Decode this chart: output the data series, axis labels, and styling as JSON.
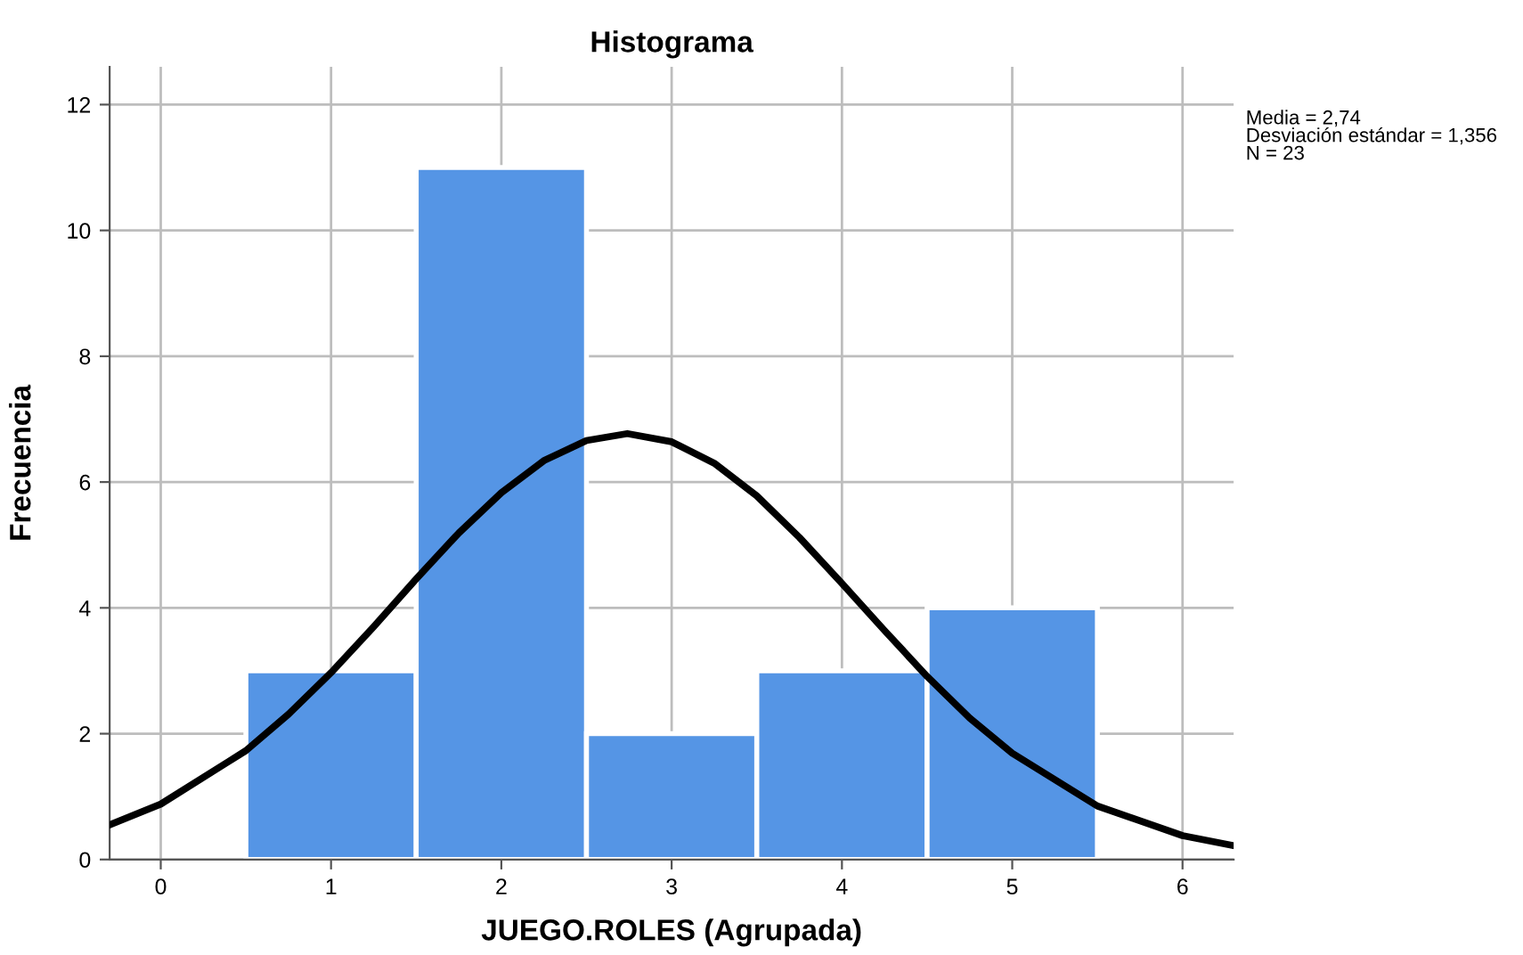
{
  "chart_data": {
    "type": "histogram",
    "title": "Histograma",
    "xlabel": "JUEGO.ROLES (Agrupada)",
    "ylabel": "Frecuencia",
    "bins": [
      0.5,
      1.5,
      2.5,
      3.5,
      4.5,
      5.5
    ],
    "values": [
      3,
      11,
      2,
      3,
      4
    ],
    "color": "#5595e5",
    "series": [
      {
        "type": "line",
        "color": "#000000",
        "x": [
          -0.3,
          0,
          0.5,
          0.75,
          1,
          1.25,
          1.5,
          1.75,
          2,
          2.25,
          2.5,
          2.74,
          3,
          3.25,
          3.5,
          3.75,
          4,
          4.25,
          4.5,
          4.75,
          5,
          5.5,
          6,
          6.3
        ],
        "values": [
          0.55,
          0.88,
          1.73,
          2.31,
          2.97,
          3.7,
          4.46,
          5.19,
          5.83,
          6.34,
          6.66,
          6.77,
          6.64,
          6.3,
          5.78,
          5.12,
          4.39,
          3.64,
          2.91,
          2.25,
          1.69,
          0.85,
          0.38,
          0.22
        ]
      }
    ],
    "xlim": [
      -0.3,
      6.3
    ],
    "xticks": [
      0,
      1,
      2,
      3,
      4,
      5,
      6
    ],
    "ylim": [
      0,
      12.6
    ],
    "yticks": [
      0,
      2,
      4,
      6,
      8,
      10,
      12
    ],
    "grid": true,
    "annotations": [
      "Media = 2,74\nDesviación estándar = 1,356\nN = 23"
    ]
  }
}
